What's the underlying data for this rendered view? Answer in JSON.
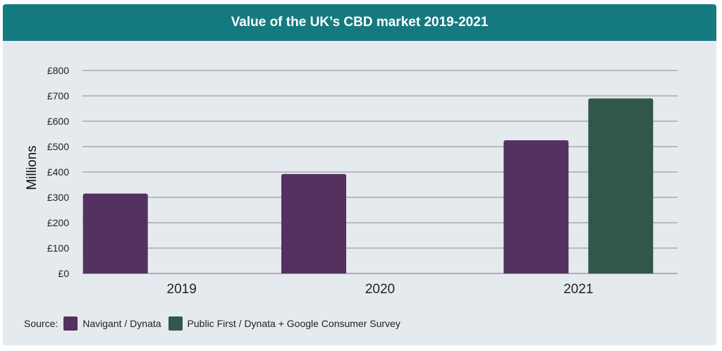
{
  "colors": {
    "header_bg": "#157a80",
    "card_bg": "#e5eaee",
    "series1": "#553160",
    "series2": "#31574a",
    "grid": "#8a8a8a"
  },
  "legend": {
    "prefix": "Source:"
  },
  "chart_data": {
    "type": "bar",
    "title": "Value of the UK’s CBD market 2019-2021",
    "ylabel": "Millions",
    "xlabel": "",
    "categories": [
      "2019",
      "2020",
      "2021"
    ],
    "ylim": [
      0,
      800
    ],
    "yticks": [
      "£0",
      "£100",
      "£200",
      "£300",
      "£400",
      "£500",
      "£600",
      "£700",
      "£800"
    ],
    "grid": true,
    "legend_position": "bottom-left",
    "series": [
      {
        "name": "Navigant / Dynata",
        "values": [
          315,
          392,
          525
        ]
      },
      {
        "name": "Public First / Dynata + Google Consumer Survey",
        "values": [
          null,
          null,
          690
        ]
      }
    ]
  }
}
